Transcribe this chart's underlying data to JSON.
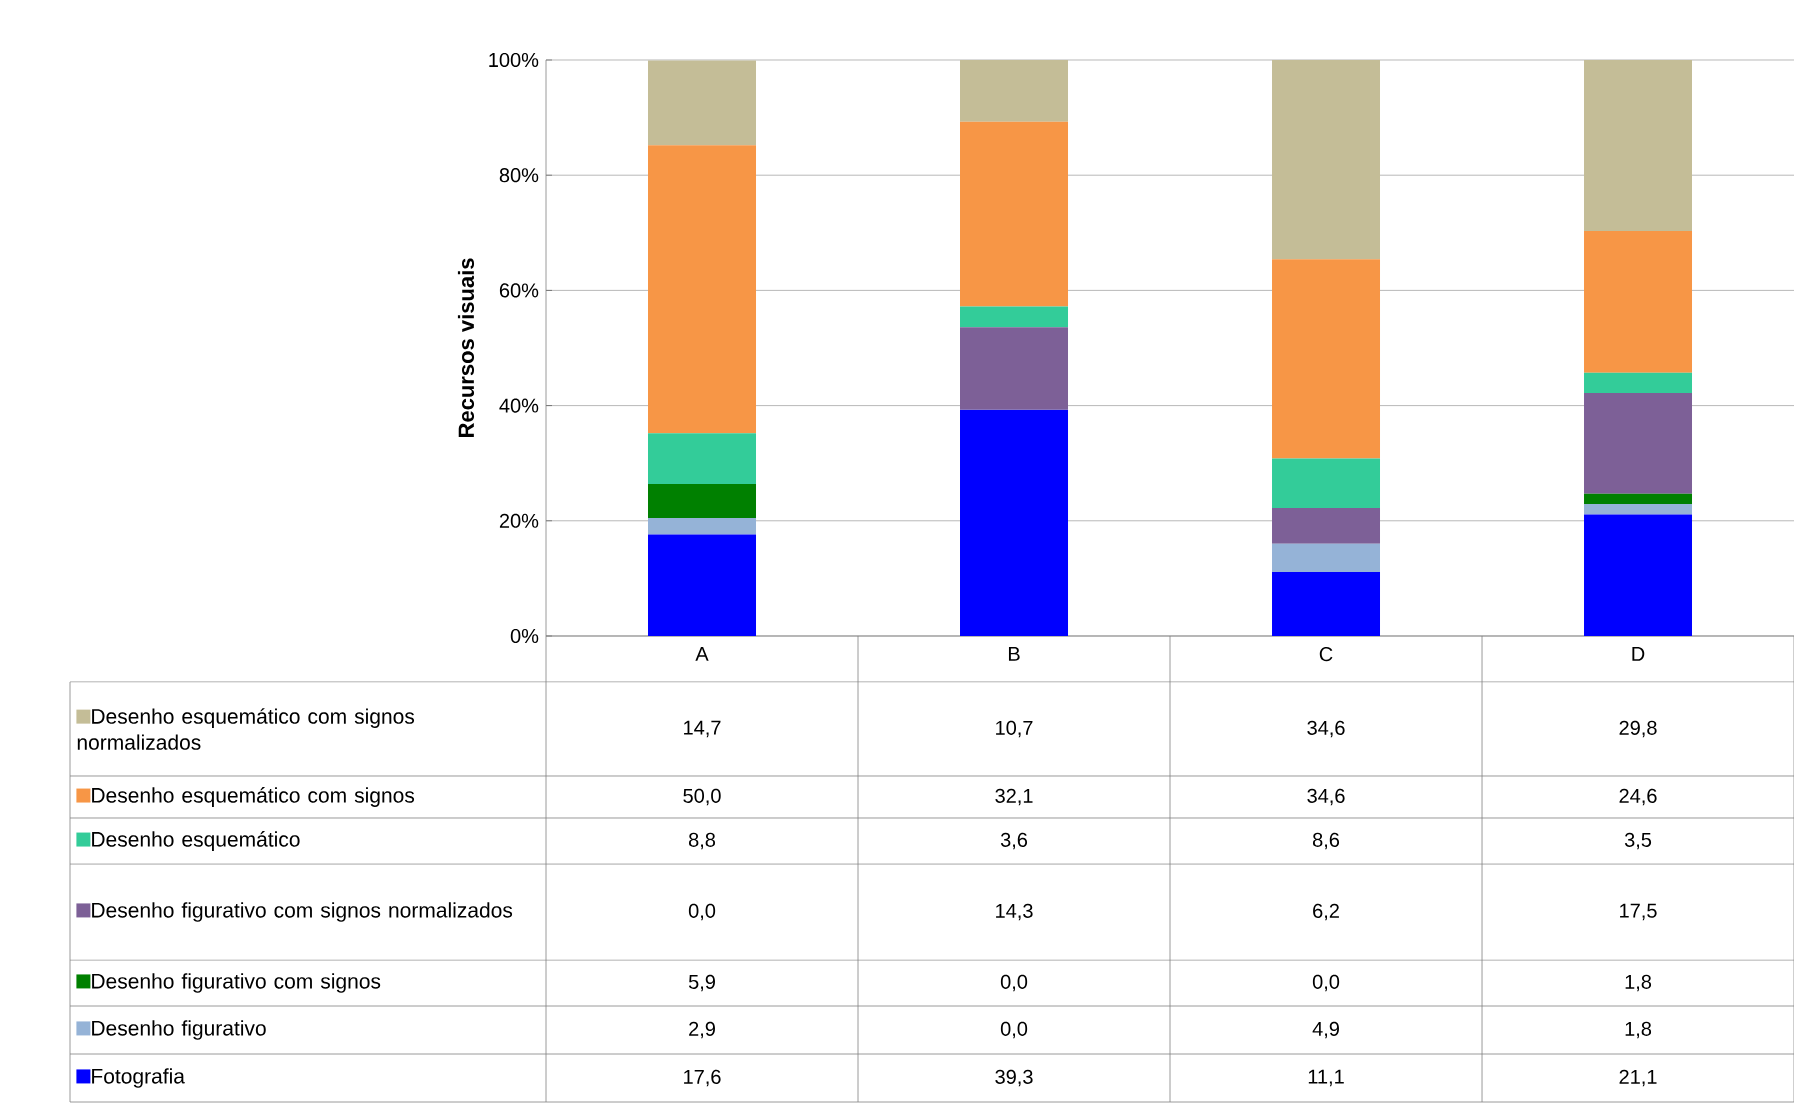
{
  "chart_data": {
    "type": "bar",
    "stacked": true,
    "ylabel": "Recursos visuais",
    "categories": [
      "A",
      "B",
      "C",
      "D"
    ],
    "ylim": [
      0,
      100
    ],
    "yticks": [
      {
        "value": 0,
        "label": "0%"
      },
      {
        "value": 20,
        "label": "20%"
      },
      {
        "value": 40,
        "label": "40%"
      },
      {
        "value": 60,
        "label": "60%"
      },
      {
        "value": 80,
        "label": "80%"
      },
      {
        "value": 100,
        "label": "100%"
      }
    ],
    "grid": "y",
    "legend": "bottom",
    "series": [
      {
        "name": "Fotografia",
        "color": "#0000ff",
        "values": [
          17.6,
          39.3,
          11.1,
          21.1
        ],
        "value_labels": [
          "17,6",
          "39,3",
          "11,1",
          "21,1"
        ]
      },
      {
        "name": "Desenho figurativo",
        "color": "#95b3d7",
        "values": [
          2.9,
          0.0,
          4.9,
          1.8
        ],
        "value_labels": [
          "2,9",
          "0,0",
          "4,9",
          "1,8"
        ]
      },
      {
        "name": "Desenho figurativo com signos",
        "color": "#008000",
        "values": [
          5.9,
          0.0,
          0.0,
          1.8
        ],
        "value_labels": [
          "5,9",
          "0,0",
          "0,0",
          "1,8"
        ]
      },
      {
        "name": "Desenho figurativo com signos normalizados",
        "color": "#7d6097",
        "values": [
          0.0,
          14.3,
          6.2,
          17.5
        ],
        "value_labels": [
          "0,0",
          "14,3",
          "6,2",
          "17,5"
        ]
      },
      {
        "name": "Desenho esquemático",
        "color": "#33cc99",
        "values": [
          8.8,
          3.6,
          8.6,
          3.5
        ],
        "value_labels": [
          "8,8",
          "3,6",
          "8,6",
          "3,5"
        ]
      },
      {
        "name": "Desenho esquemático com signos",
        "color": "#f79646",
        "values": [
          50.0,
          32.1,
          34.6,
          24.6
        ],
        "value_labels": [
          "50,0",
          "32,1",
          "34,6",
          "24,6"
        ]
      },
      {
        "name": "Desenho esquemático com signos normalizados",
        "color": "#c4bd97",
        "values": [
          14.7,
          10.7,
          34.6,
          29.8
        ],
        "value_labels": [
          "14,7",
          "10,7",
          "34,6",
          "29,8"
        ]
      }
    ]
  }
}
